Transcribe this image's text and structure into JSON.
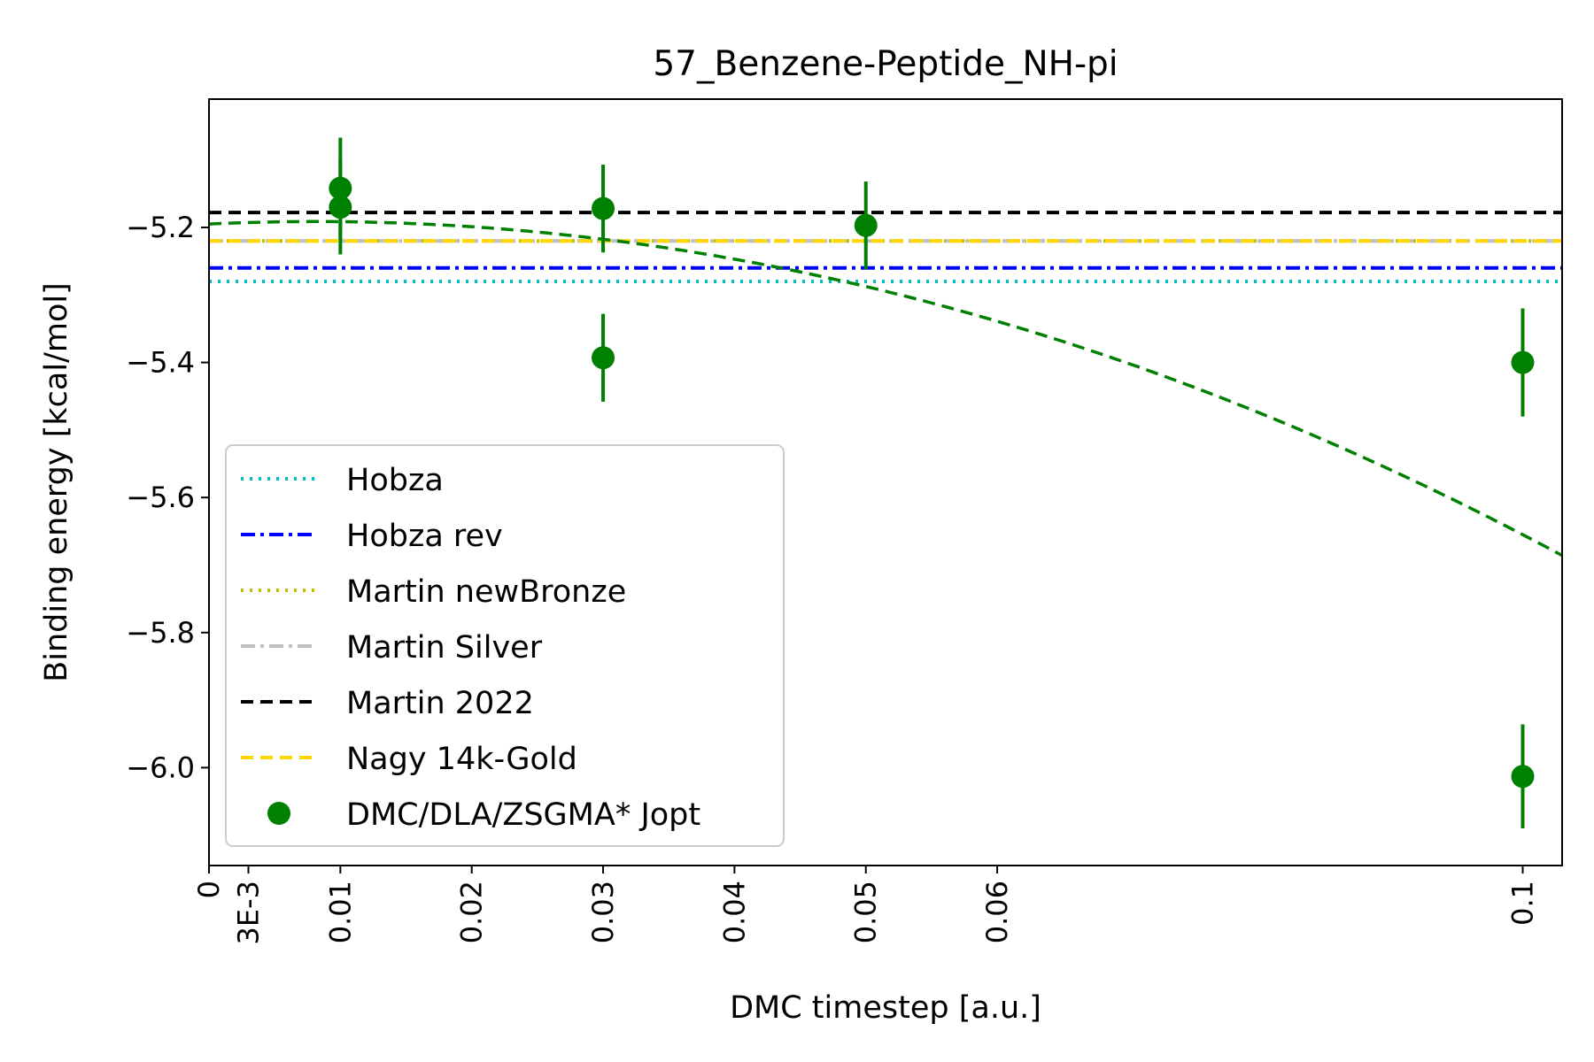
{
  "chart_data": {
    "type": "scatter",
    "title": "57_Benzene-Peptide_NH-pi",
    "xlabel": "DMC timestep [a.u.]",
    "ylabel": "Binding energy [kcal/mol]",
    "xlim": [
      0,
      0.103
    ],
    "ylim": [
      -6.145,
      -5.01
    ],
    "x_ticks": [
      {
        "value": 0,
        "label": "0"
      },
      {
        "value": 0.003,
        "label": "3E-3"
      },
      {
        "value": 0.01,
        "label": "0.01"
      },
      {
        "value": 0.02,
        "label": "0.02"
      },
      {
        "value": 0.03,
        "label": "0.03"
      },
      {
        "value": 0.04,
        "label": "0.04"
      },
      {
        "value": 0.05,
        "label": "0.05"
      },
      {
        "value": 0.06,
        "label": "0.06"
      },
      {
        "value": 0.1,
        "label": "0.1"
      }
    ],
    "y_ticks": [
      {
        "value": -5.2,
        "label": "−5.2"
      },
      {
        "value": -5.4,
        "label": "−5.4"
      },
      {
        "value": -5.6,
        "label": "−5.6"
      },
      {
        "value": -5.8,
        "label": "−5.8"
      },
      {
        "value": -6.0,
        "label": "−6.0"
      }
    ],
    "reference_lines": [
      {
        "name": "Hobza",
        "value": -5.28,
        "color": "#00bfbf",
        "style": "dotted"
      },
      {
        "name": "Hobza rev",
        "value": -5.26,
        "color": "#0000ff",
        "style": "dashdot"
      },
      {
        "name": "Martin newBronze",
        "value": -5.22,
        "color": "#bfbf00",
        "style": "dotted"
      },
      {
        "name": "Martin Silver",
        "value": -5.22,
        "color": "#c0c0c0",
        "style": "dashdot"
      },
      {
        "name": "Martin 2022",
        "value": -5.178,
        "color": "#000000",
        "style": "dashed"
      },
      {
        "name": "Nagy 14k-Gold",
        "value": -5.22,
        "color": "#ffd700",
        "style": "dashed"
      }
    ],
    "series": [
      {
        "name": "DMC/DLA/ZSGMA* Jopt",
        "color": "#008000",
        "points": [
          {
            "x": 0.01,
            "y": -5.142,
            "err": 0.075
          },
          {
            "x": 0.01,
            "y": -5.17,
            "err": 0.07
          },
          {
            "x": 0.03,
            "y": -5.172,
            "err": 0.065
          },
          {
            "x": 0.03,
            "y": -5.393,
            "err": 0.065
          },
          {
            "x": 0.05,
            "y": -5.197,
            "err": 0.065
          },
          {
            "x": 0.1,
            "y": -5.4,
            "err": 0.08
          },
          {
            "x": 0.1,
            "y": -6.013,
            "err": 0.077
          }
        ]
      }
    ],
    "fit": {
      "color": "#008000",
      "style": "dashed",
      "coefficients": {
        "a": -5.195,
        "b": 0.9,
        "c": -55.0
      }
    },
    "legend_position": "lower-left",
    "grid": false
  }
}
